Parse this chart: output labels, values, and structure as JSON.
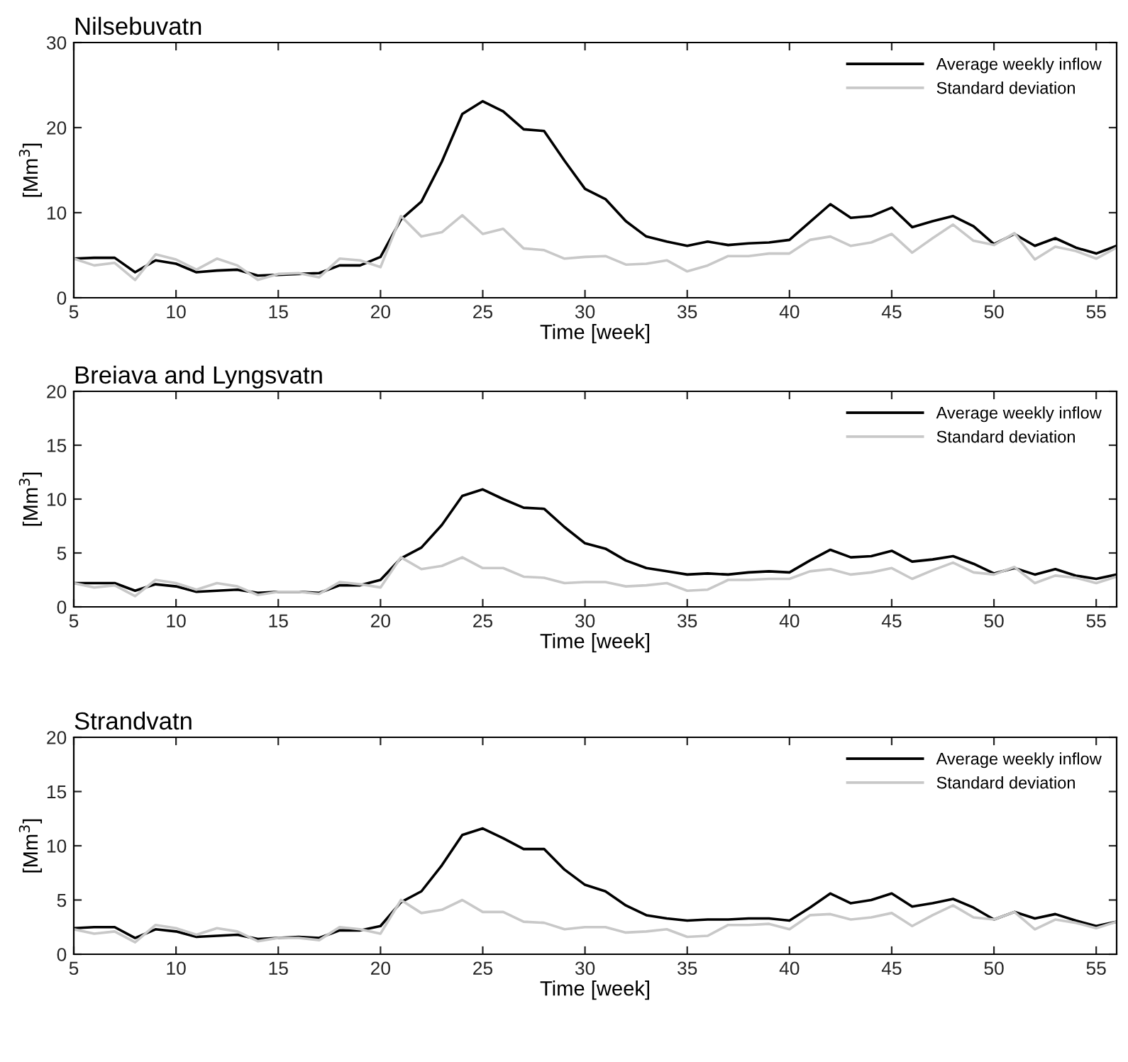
{
  "chart_data": [
    {
      "type": "line",
      "title": "Nilsebuvatn",
      "xlabel": "Time [week]",
      "ylabel": "[Mm$^{3}$]",
      "xlim": [
        5,
        56
      ],
      "xticks": [
        5,
        10,
        15,
        20,
        25,
        30,
        35,
        40,
        45,
        50,
        55
      ],
      "ylim": [
        0,
        30
      ],
      "yticks": [
        0,
        10,
        20,
        30
      ],
      "legend": "top right",
      "grid": false,
      "marker": "none",
      "line_style": "solid",
      "x": [
        5,
        6,
        7,
        8,
        9,
        10,
        11,
        12,
        13,
        14,
        15,
        16,
        17,
        18,
        19,
        20,
        21,
        22,
        23,
        24,
        25,
        26,
        27,
        28,
        29,
        30,
        31,
        32,
        33,
        34,
        35,
        36,
        37,
        38,
        39,
        40,
        41,
        42,
        43,
        44,
        45,
        46,
        47,
        48,
        49,
        50,
        51,
        52,
        53,
        54,
        55,
        56
      ],
      "series": [
        {
          "name": "Average weekly inflow",
          "color": "#000000",
          "values": [
            4.6,
            4.7,
            4.7,
            3.0,
            4.4,
            4.0,
            3.0,
            3.2,
            3.3,
            2.6,
            2.7,
            2.8,
            2.9,
            3.8,
            3.8,
            4.8,
            9.2,
            11.3,
            16,
            21.6,
            23.1,
            21.9,
            19.8,
            19.6,
            16.1,
            12.8,
            11.6,
            9.0,
            7.2,
            6.6,
            6.1,
            6.6,
            6.2,
            6.4,
            6.5,
            6.8,
            8.9,
            11.0,
            9.4,
            9.6,
            10.6,
            8.3,
            9.0,
            9.6,
            8.4,
            6.3,
            7.5,
            6.1,
            7.0,
            5.9,
            5.2,
            6.1
          ]
        },
        {
          "name": "Standard deviation",
          "color": "#c8c8c8",
          "values": [
            4.6,
            3.8,
            4.1,
            2.1,
            5.1,
            4.5,
            3.3,
            4.6,
            3.8,
            2.1,
            2.8,
            2.9,
            2.4,
            4.6,
            4.4,
            3.6,
            9.6,
            7.2,
            7.7,
            9.7,
            7.5,
            8.1,
            5.8,
            5.6,
            4.6,
            4.8,
            4.9,
            3.9,
            4.0,
            4.4,
            3.1,
            3.8,
            4.9,
            4.9,
            5.2,
            5.2,
            6.8,
            7.2,
            6.1,
            6.5,
            7.5,
            5.3,
            7.0,
            8.6,
            6.7,
            6.2,
            7.6,
            4.5,
            6.0,
            5.5,
            4.6,
            5.9
          ]
        }
      ]
    },
    {
      "type": "line",
      "title": "Breiava and Lyngsvatn",
      "xlabel": "Time [week]",
      "ylabel": "[Mm$^{3}$]",
      "xlim": [
        5,
        56
      ],
      "xticks": [
        5,
        10,
        15,
        20,
        25,
        30,
        35,
        40,
        45,
        50,
        55
      ],
      "ylim": [
        0,
        20
      ],
      "yticks": [
        0,
        5,
        10,
        15,
        20
      ],
      "legend": "top right",
      "grid": false,
      "marker": "none",
      "line_style": "solid",
      "x": [
        5,
        6,
        7,
        8,
        9,
        10,
        11,
        12,
        13,
        14,
        15,
        16,
        17,
        18,
        19,
        20,
        21,
        22,
        23,
        24,
        25,
        26,
        27,
        28,
        29,
        30,
        31,
        32,
        33,
        34,
        35,
        36,
        37,
        38,
        39,
        40,
        41,
        42,
        43,
        44,
        45,
        46,
        47,
        48,
        49,
        50,
        51,
        52,
        53,
        54,
        55,
        56
      ],
      "series": [
        {
          "name": "Average weekly inflow",
          "color": "#000000",
          "values": [
            2.2,
            2.2,
            2.2,
            1.5,
            2.1,
            1.9,
            1.4,
            1.5,
            1.6,
            1.3,
            1.4,
            1.4,
            1.3,
            2.0,
            2.0,
            2.5,
            4.5,
            5.5,
            7.6,
            10.3,
            10.9,
            10.0,
            9.2,
            9.1,
            7.4,
            5.9,
            5.4,
            4.3,
            3.6,
            3.3,
            3.0,
            3.1,
            3.0,
            3.2,
            3.3,
            3.2,
            4.3,
            5.3,
            4.6,
            4.7,
            5.2,
            4.2,
            4.4,
            4.7,
            4.0,
            3.1,
            3.6,
            3.0,
            3.5,
            2.9,
            2.6,
            3.0
          ]
        },
        {
          "name": "Standard deviation",
          "color": "#c8c8c8",
          "values": [
            2.2,
            1.8,
            2.0,
            1.0,
            2.5,
            2.2,
            1.6,
            2.2,
            1.9,
            1.1,
            1.4,
            1.4,
            1.2,
            2.3,
            2.1,
            1.8,
            4.6,
            3.5,
            3.8,
            4.6,
            3.6,
            3.6,
            2.8,
            2.7,
            2.2,
            2.3,
            2.3,
            1.9,
            2.0,
            2.2,
            1.5,
            1.6,
            2.5,
            2.5,
            2.6,
            2.6,
            3.3,
            3.5,
            3.0,
            3.2,
            3.6,
            2.6,
            3.4,
            4.1,
            3.2,
            3.0,
            3.7,
            2.2,
            2.9,
            2.7,
            2.2,
            2.8
          ]
        }
      ]
    },
    {
      "type": "line",
      "title": "Strandvatn",
      "xlabel": "Time [week]",
      "ylabel": "[Mm$^{3}$]",
      "xlim": [
        5,
        56
      ],
      "xticks": [
        5,
        10,
        15,
        20,
        25,
        30,
        35,
        40,
        45,
        50,
        55
      ],
      "ylim": [
        0,
        20
      ],
      "yticks": [
        0,
        5,
        10,
        15,
        20
      ],
      "legend": "top right",
      "grid": false,
      "marker": "none",
      "line_style": "solid",
      "x": [
        5,
        6,
        7,
        8,
        9,
        10,
        11,
        12,
        13,
        14,
        15,
        16,
        17,
        18,
        19,
        20,
        21,
        22,
        23,
        24,
        25,
        26,
        27,
        28,
        29,
        30,
        31,
        32,
        33,
        34,
        35,
        36,
        37,
        38,
        39,
        40,
        41,
        42,
        43,
        44,
        45,
        46,
        47,
        48,
        49,
        50,
        51,
        52,
        53,
        54,
        55,
        56
      ],
      "series": [
        {
          "name": "Average weekly inflow",
          "color": "#000000",
          "values": [
            2.4,
            2.5,
            2.5,
            1.5,
            2.3,
            2.1,
            1.6,
            1.7,
            1.8,
            1.4,
            1.5,
            1.6,
            1.5,
            2.2,
            2.2,
            2.6,
            4.8,
            5.8,
            8.2,
            11.0,
            11.6,
            10.7,
            9.7,
            9.7,
            7.8,
            6.4,
            5.8,
            4.5,
            3.6,
            3.3,
            3.1,
            3.2,
            3.2,
            3.3,
            3.3,
            3.1,
            4.3,
            5.6,
            4.7,
            5.0,
            5.6,
            4.4,
            4.7,
            5.1,
            4.3,
            3.2,
            3.9,
            3.3,
            3.7,
            3.1,
            2.6,
            3.0
          ]
        },
        {
          "name": "Standard deviation",
          "color": "#c8c8c8",
          "values": [
            2.3,
            1.9,
            2.1,
            1.1,
            2.7,
            2.4,
            1.8,
            2.4,
            2.1,
            1.2,
            1.5,
            1.5,
            1.3,
            2.5,
            2.3,
            1.9,
            5.0,
            3.8,
            4.1,
            5.0,
            3.9,
            3.9,
            3.0,
            2.9,
            2.3,
            2.5,
            2.5,
            2.0,
            2.1,
            2.3,
            1.6,
            1.7,
            2.7,
            2.7,
            2.8,
            2.3,
            3.6,
            3.7,
            3.2,
            3.4,
            3.8,
            2.6,
            3.6,
            4.5,
            3.4,
            3.2,
            3.9,
            2.3,
            3.2,
            2.9,
            2.4,
            3.0
          ]
        }
      ]
    }
  ]
}
